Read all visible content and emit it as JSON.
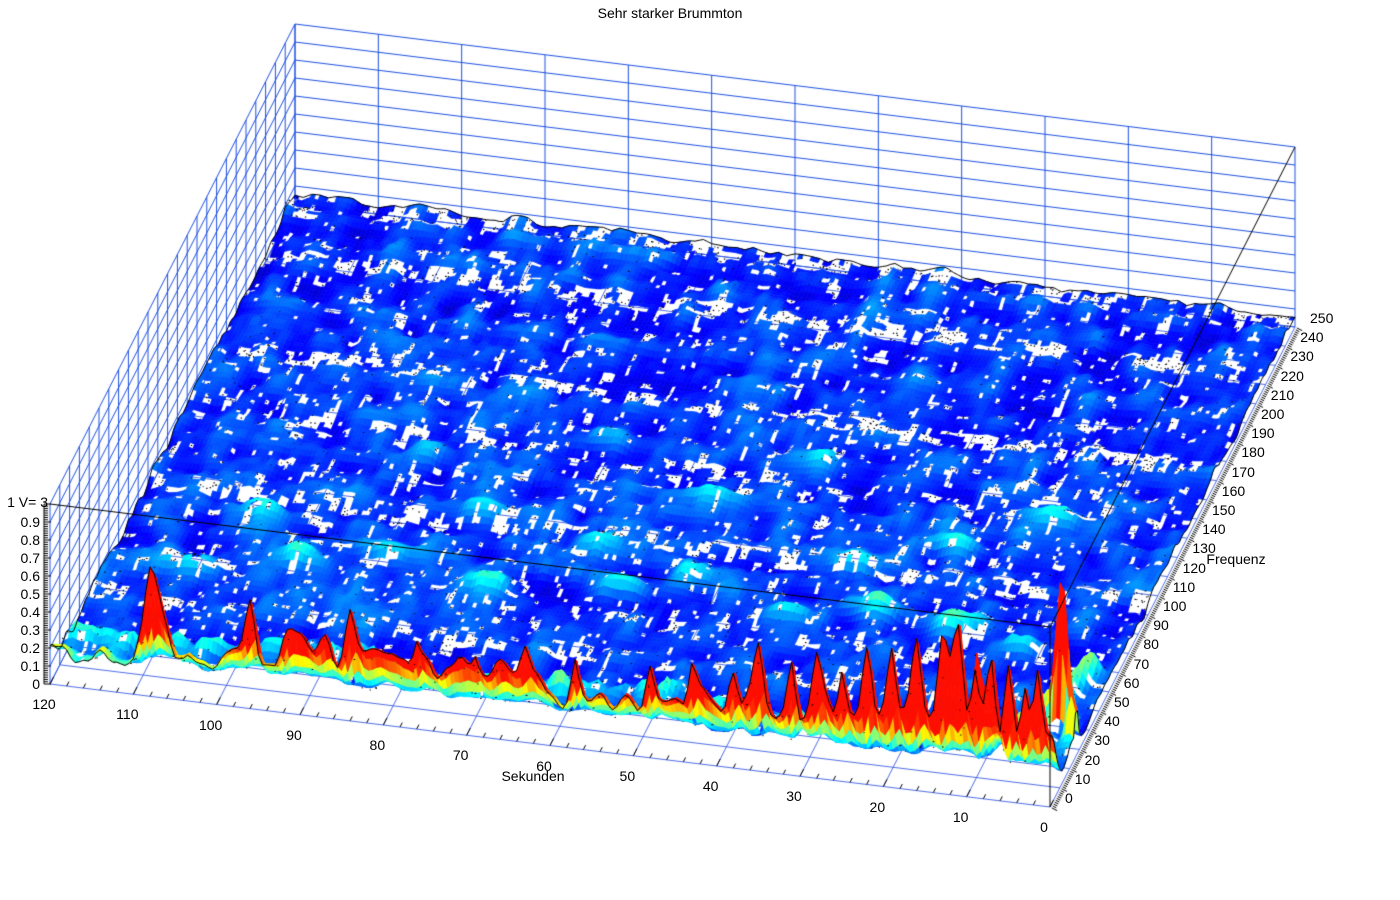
{
  "chart_data": {
    "type": "surface",
    "title": "Sehr starker Brummton",
    "xlabel": "Sekunden",
    "ylabel": "Frequenz",
    "z_max_label": "1 V= 3",
    "colormap": "jet",
    "clim": [
      0,
      0.35
    ],
    "color_cap": 0.86,
    "axes": {
      "x": {
        "range": [
          0,
          120
        ],
        "ticks": [
          120,
          110,
          100,
          90,
          80,
          70,
          60,
          50,
          40,
          30,
          20,
          10,
          0
        ],
        "minor_step": 2,
        "direction": "reversed-left-to-right"
      },
      "y": {
        "range": [
          0,
          250
        ],
        "ticks": [
          0,
          10,
          20,
          30,
          40,
          50,
          60,
          70,
          80,
          90,
          100,
          110,
          120,
          130,
          140,
          150,
          160,
          170,
          180,
          190,
          200,
          210,
          220,
          230,
          240,
          250
        ],
        "minor_step": 1
      },
      "z": {
        "range": [
          0,
          1
        ],
        "ticks": [
          0,
          0.1,
          0.2,
          0.3,
          0.4,
          0.5,
          0.6,
          0.7,
          0.8,
          0.9
        ],
        "minor_step": 0.0125
      }
    },
    "grid": {
      "wall_step_seconds": 10,
      "wall_step_freq": 10,
      "wall_step_z": 0.1,
      "floor": true
    },
    "projection": {
      "origin": [
        50,
        684
      ],
      "sec_vec": [
        1000,
        123
      ],
      "freq_vec": [
        245,
        -480
      ],
      "z_vec": [
        0,
        -180
      ]
    },
    "colors": {
      "background": "#ffffff",
      "grid_blue": "#1c4fe0",
      "floor_blue": "#3a5ce2",
      "box_edge": "#000000",
      "tick": "#000000",
      "text": "#000000"
    },
    "surface": {
      "seed": 1337,
      "grid": {
        "ns": 240,
        "nf": 125
      },
      "base_level": 0.062,
      "noise": [
        {
          "scale": 6,
          "amp": 0.026
        },
        {
          "scale": 2,
          "amp": 0.013
        }
      ],
      "row_noise_amp": 0.011,
      "hum": {
        "freq_sigma": 7,
        "jitter": 0.35,
        "envelope": [
          [
            120,
            0.13
          ],
          [
            114,
            0.12
          ],
          [
            110,
            0.13
          ],
          [
            107,
            0.4
          ],
          [
            104,
            0.16
          ],
          [
            100,
            0.2
          ],
          [
            97,
            0.3
          ],
          [
            94,
            0.28
          ],
          [
            90,
            0.33
          ],
          [
            86,
            0.3
          ],
          [
            82,
            0.33
          ],
          [
            78,
            0.3
          ],
          [
            74,
            0.33
          ],
          [
            70,
            0.31
          ],
          [
            66,
            0.29
          ],
          [
            62,
            0.27
          ],
          [
            58,
            0.25
          ],
          [
            54,
            0.24
          ],
          [
            50,
            0.27
          ],
          [
            46,
            0.24
          ],
          [
            42,
            0.29
          ],
          [
            38,
            0.33
          ],
          [
            34,
            0.3
          ],
          [
            30,
            0.33
          ],
          [
            27,
            0.36
          ],
          [
            24,
            0.35
          ],
          [
            21,
            0.38
          ],
          [
            18,
            0.37
          ],
          [
            15,
            0.4
          ],
          [
            12,
            0.4
          ],
          [
            9,
            0.37
          ],
          [
            6,
            0.35
          ],
          [
            3,
            0.33
          ],
          [
            0,
            0.3
          ]
        ],
        "spikes": [
          [
            108,
            0.28,
            0.8
          ],
          [
            96,
            0.2,
            0.7
          ],
          [
            84,
            0.15,
            0.6
          ],
          [
            76,
            0.12,
            0.5
          ],
          [
            69,
            0.1,
            0.5
          ],
          [
            63,
            0.2,
            0.7
          ],
          [
            57,
            0.15,
            0.5
          ],
          [
            48,
            0.18,
            0.6
          ],
          [
            43,
            0.22,
            0.6
          ],
          [
            38,
            0.26,
            0.8
          ],
          [
            35,
            0.3,
            0.7
          ],
          [
            31,
            0.26,
            0.6
          ],
          [
            28,
            0.3,
            0.7
          ],
          [
            25,
            0.28,
            0.6
          ],
          [
            22,
            0.44,
            0.8
          ],
          [
            19,
            0.3,
            0.6
          ],
          [
            16,
            0.36,
            0.7
          ],
          [
            13,
            0.46,
            0.8
          ],
          [
            11,
            0.55,
            0.7
          ],
          [
            9,
            0.36,
            0.6
          ],
          [
            7,
            0.3,
            0.6
          ],
          [
            5,
            0.42,
            0.7
          ],
          [
            3,
            0.3,
            0.6
          ],
          [
            1.5,
            0.36,
            0.6
          ]
        ]
      },
      "wavy_ridge": {
        "freq_center": 21,
        "freq_amp": 4.5,
        "period": 6.5,
        "sigma": 3.5,
        "height": 0.085
      },
      "chirp": {
        "s_start": 8.5,
        "s_end": 2.5,
        "f_start": 4,
        "f_end": 60,
        "sigma_s": 1.2,
        "height": 0.13
      },
      "peaks": [
        [
          2.8,
          36,
          0.8,
          1.0,
          2.6
        ],
        [
          0.5,
          27,
          0.32,
          0.8,
          2.2
        ]
      ],
      "bumps": [
        [
          98,
          70,
          0.07
        ],
        [
          88,
          78,
          0.06
        ],
        [
          75,
          68,
          0.08
        ],
        [
          60,
          75,
          0.1
        ],
        [
          52,
          85,
          0.07
        ],
        [
          40,
          72,
          0.09
        ],
        [
          30,
          80,
          0.07
        ],
        [
          20,
          76,
          0.1
        ],
        [
          12,
          70,
          0.08
        ],
        [
          65,
          95,
          0.1
        ],
        [
          35,
          100,
          0.06
        ],
        [
          80,
          105,
          0.05
        ],
        [
          25,
          115,
          0.07
        ],
        [
          55,
          125,
          0.06
        ],
        [
          90,
          130,
          0.05
        ],
        [
          15,
          135,
          0.06
        ],
        [
          70,
          148,
          0.05
        ],
        [
          45,
          150,
          0.05
        ],
        [
          105,
          90,
          0.06
        ],
        [
          110,
          60,
          0.07
        ]
      ],
      "bump_sigma": [
        3,
        4.5
      ],
      "dropout_bands": [
        [
          246,
          4,
          0.5
        ],
        [
          218,
          4,
          0.5
        ],
        [
          170,
          4,
          0.5
        ],
        [
          138,
          3,
          0.64
        ],
        [
          100,
          4,
          0.52
        ],
        [
          62,
          3,
          0.68
        ],
        [
          42,
          4,
          0.56
        ]
      ],
      "hole_threshold": 0.8,
      "hole_pepper": 0.025,
      "hole_zmax": 0.15,
      "speckle_density": 0.12,
      "red_dot_density": 0.2
    }
  }
}
